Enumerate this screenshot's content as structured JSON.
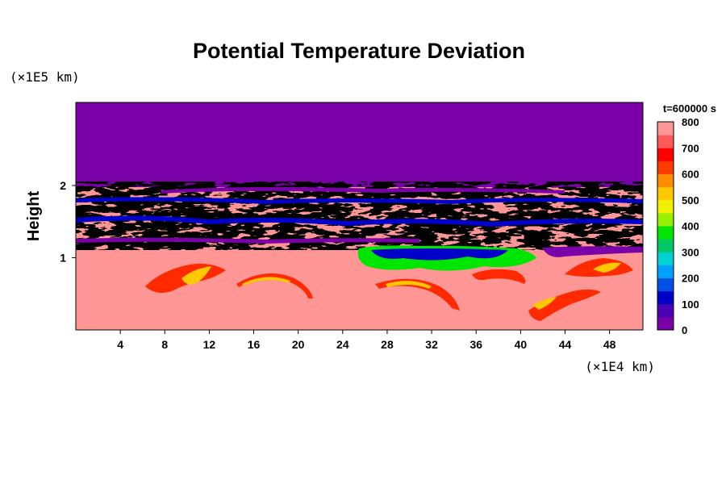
{
  "chart_data": {
    "type": "heatmap",
    "title": "Potential Temperature Deviation",
    "xlabel": "",
    "ylabel": "Height",
    "x_unit_label": "(×1E4 km)",
    "y_unit_label": "(×1E5 km)",
    "time_label": "t=600000 s",
    "xlim": [
      0,
      51
    ],
    "ylim": [
      0,
      3.15
    ],
    "x_ticks": [
      4,
      8,
      12,
      16,
      20,
      24,
      28,
      32,
      36,
      40,
      44,
      48
    ],
    "y_ticks": [
      1,
      2
    ],
    "colorbar": {
      "min": 0,
      "max": 800,
      "ticks": [
        0,
        100,
        200,
        300,
        400,
        500,
        600,
        700,
        800
      ],
      "colors": [
        "#7a00a8",
        "#4b00b4",
        "#0000c8",
        "#0050e6",
        "#00a0ff",
        "#00d2d2",
        "#00c864",
        "#00e600",
        "#96f000",
        "#f0f000",
        "#ffc800",
        "#ff8c00",
        "#ff3c00",
        "#ff0000",
        "#ff5a5a",
        "#ff9696"
      ]
    },
    "field_description": {
      "upper_layer_value": 0,
      "lower_layer_value": 800,
      "turbulent_band_y_range": [
        1.0,
        2.0
      ]
    }
  }
}
